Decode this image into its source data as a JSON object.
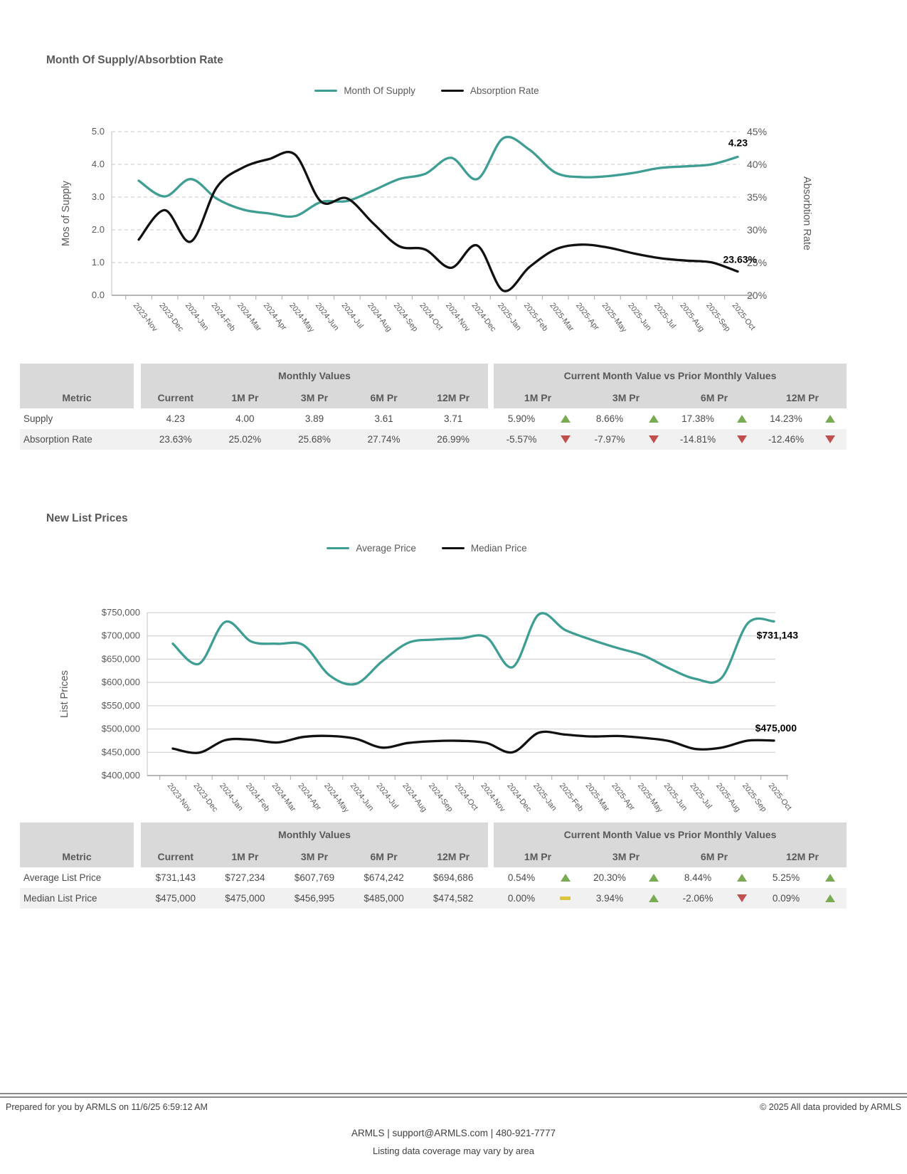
{
  "colors": {
    "teal": "#3f9e93",
    "black": "#111111",
    "up": "#79ab52",
    "down": "#c0504d",
    "flat": "#dcc53c",
    "header_text": "#595959"
  },
  "chart_data": [
    {
      "type": "line",
      "title": "Month Of Supply/Absorbtion Rate",
      "grid": "dashed",
      "legend_position": "top",
      "categories": [
        "2023-Nov",
        "2023-Dec",
        "2024-Jan",
        "2024-Feb",
        "2024-Mar",
        "2024-Apr",
        "2024-May",
        "2024-Jun",
        "2024-Jul",
        "2024-Aug",
        "2024-Sep",
        "2024-Oct",
        "2024-Nov",
        "2024-Dec",
        "2025-Jan",
        "2025-Feb",
        "2025-Mar",
        "2025-Apr",
        "2025-May",
        "2025-Jun",
        "2025-Jul",
        "2025-Aug",
        "2025-Sep",
        "2025-Oct"
      ],
      "y_left": {
        "label": "Mos of Supply",
        "min": 0,
        "max": 5,
        "ticks": [
          "5.0",
          "4.0",
          "3.0",
          "2.0",
          "1.0",
          "0.0"
        ]
      },
      "y_right": {
        "label": "Absorbtion Rate",
        "min": 20,
        "max": 45,
        "ticks": [
          "45%",
          "40%",
          "35%",
          "30%",
          "25%",
          "20%"
        ]
      },
      "series": [
        {
          "name": "Month Of Supply",
          "axis": "left",
          "color": "#3f9e93",
          "end_label": "4.23",
          "values": [
            3.5,
            3.02,
            3.55,
            2.95,
            2.62,
            2.5,
            2.42,
            2.85,
            2.88,
            3.2,
            3.55,
            3.71,
            4.2,
            3.55,
            4.8,
            4.45,
            3.75,
            3.61,
            3.64,
            3.74,
            3.89,
            3.94,
            4.0,
            4.23
          ]
        },
        {
          "name": "Absorption Rate",
          "axis": "right",
          "color": "#111111",
          "end_label": "23.63%",
          "values": [
            28.5,
            33.0,
            28.2,
            36.5,
            39.5,
            40.8,
            41.5,
            34.3,
            34.8,
            31.0,
            27.5,
            26.99,
            24.2,
            27.6,
            20.7,
            24.3,
            27.0,
            27.74,
            27.3,
            26.4,
            25.68,
            25.3,
            25.02,
            23.63
          ]
        }
      ]
    },
    {
      "type": "line",
      "title": "New List Prices",
      "grid": "solid",
      "legend_position": "top",
      "categories": [
        "2023-Nov",
        "2023-Dec",
        "2024-Jan",
        "2024-Feb",
        "2024-Mar",
        "2024-Apr",
        "2024-May",
        "2024-Jun",
        "2024-Jul",
        "2024-Aug",
        "2024-Sep",
        "2024-Oct",
        "2024-Nov",
        "2024-Dec",
        "2025-Jan",
        "2025-Feb",
        "2025-Mar",
        "2025-Apr",
        "2025-May",
        "2025-Jun",
        "2025-Jul",
        "2025-Aug",
        "2025-Sep",
        "2025-Oct"
      ],
      "y_left": {
        "label": "List Prices",
        "min": 400000,
        "max": 750000,
        "ticks": [
          "$750,000",
          "$700,000",
          "$650,000",
          "$600,000",
          "$550,000",
          "$500,000",
          "$450,000",
          "$400,000"
        ]
      },
      "series": [
        {
          "name": "Average Price",
          "axis": "left",
          "color": "#3f9e93",
          "end_label": "$731,143",
          "values": [
            683000,
            640000,
            730000,
            688000,
            683000,
            680000,
            615000,
            597000,
            645000,
            685000,
            692000,
            694686,
            697000,
            633000,
            746000,
            713000,
            692000,
            674242,
            658000,
            630000,
            607769,
            610000,
            727234,
            731143
          ]
        },
        {
          "name": "Median Price",
          "axis": "left",
          "color": "#111111",
          "end_label": "$475,000",
          "values": [
            458000,
            449000,
            476000,
            477000,
            471000,
            483000,
            485000,
            479000,
            460000,
            470000,
            474000,
            474582,
            470000,
            450000,
            492000,
            488000,
            484000,
            485000,
            481000,
            474000,
            456995,
            460000,
            475000,
            475000
          ]
        }
      ]
    }
  ],
  "tables": [
    {
      "group_headers": [
        "Monthly Values",
        "Current Month Value vs Prior Monthly Values"
      ],
      "col_headers": [
        "Metric",
        "Current",
        "1M Pr",
        "3M Pr",
        "6M Pr",
        "12M Pr",
        "1M Pr",
        "3M Pr",
        "6M Pr",
        "12M Pr"
      ],
      "rows": [
        {
          "metric": "Supply",
          "values": [
            "4.23",
            "4.00",
            "3.89",
            "3.61",
            "3.71"
          ],
          "comps": [
            {
              "value": "5.90%",
              "dir": "up"
            },
            {
              "value": "8.66%",
              "dir": "up"
            },
            {
              "value": "17.38%",
              "dir": "up"
            },
            {
              "value": "14.23%",
              "dir": "up"
            }
          ]
        },
        {
          "metric": "Absorption Rate",
          "values": [
            "23.63%",
            "25.02%",
            "25.68%",
            "27.74%",
            "26.99%"
          ],
          "comps": [
            {
              "value": "-5.57%",
              "dir": "down"
            },
            {
              "value": "-7.97%",
              "dir": "down"
            },
            {
              "value": "-14.81%",
              "dir": "down"
            },
            {
              "value": "-12.46%",
              "dir": "down"
            }
          ]
        }
      ]
    },
    {
      "group_headers": [
        "Monthly Values",
        "Current Month Value vs Prior Monthly Values"
      ],
      "col_headers": [
        "Metric",
        "Current",
        "1M Pr",
        "3M Pr",
        "6M Pr",
        "12M Pr",
        "1M Pr",
        "3M Pr",
        "6M Pr",
        "12M Pr"
      ],
      "rows": [
        {
          "metric": "Average List Price",
          "values": [
            "$731,143",
            "$727,234",
            "$607,769",
            "$674,242",
            "$694,686"
          ],
          "comps": [
            {
              "value": "0.54%",
              "dir": "up"
            },
            {
              "value": "20.30%",
              "dir": "up"
            },
            {
              "value": "8.44%",
              "dir": "up"
            },
            {
              "value": "5.25%",
              "dir": "up"
            }
          ]
        },
        {
          "metric": "Median List Price",
          "values": [
            "$475,000",
            "$475,000",
            "$456,995",
            "$485,000",
            "$474,582"
          ],
          "comps": [
            {
              "value": "0.00%",
              "dir": "flat"
            },
            {
              "value": "3.94%",
              "dir": "up"
            },
            {
              "value": "-2.06%",
              "dir": "down"
            },
            {
              "value": "0.09%",
              "dir": "up"
            }
          ]
        }
      ]
    }
  ],
  "footer": {
    "prepared": "Prepared for you by ARMLS on 11/6/25 6:59:12 AM",
    "copyright": "© 2025 All data provided by ARMLS",
    "contact": "ARMLS | support@ARMLS.com | 480-921-7777",
    "coverage": "Listing data coverage may vary by area"
  }
}
